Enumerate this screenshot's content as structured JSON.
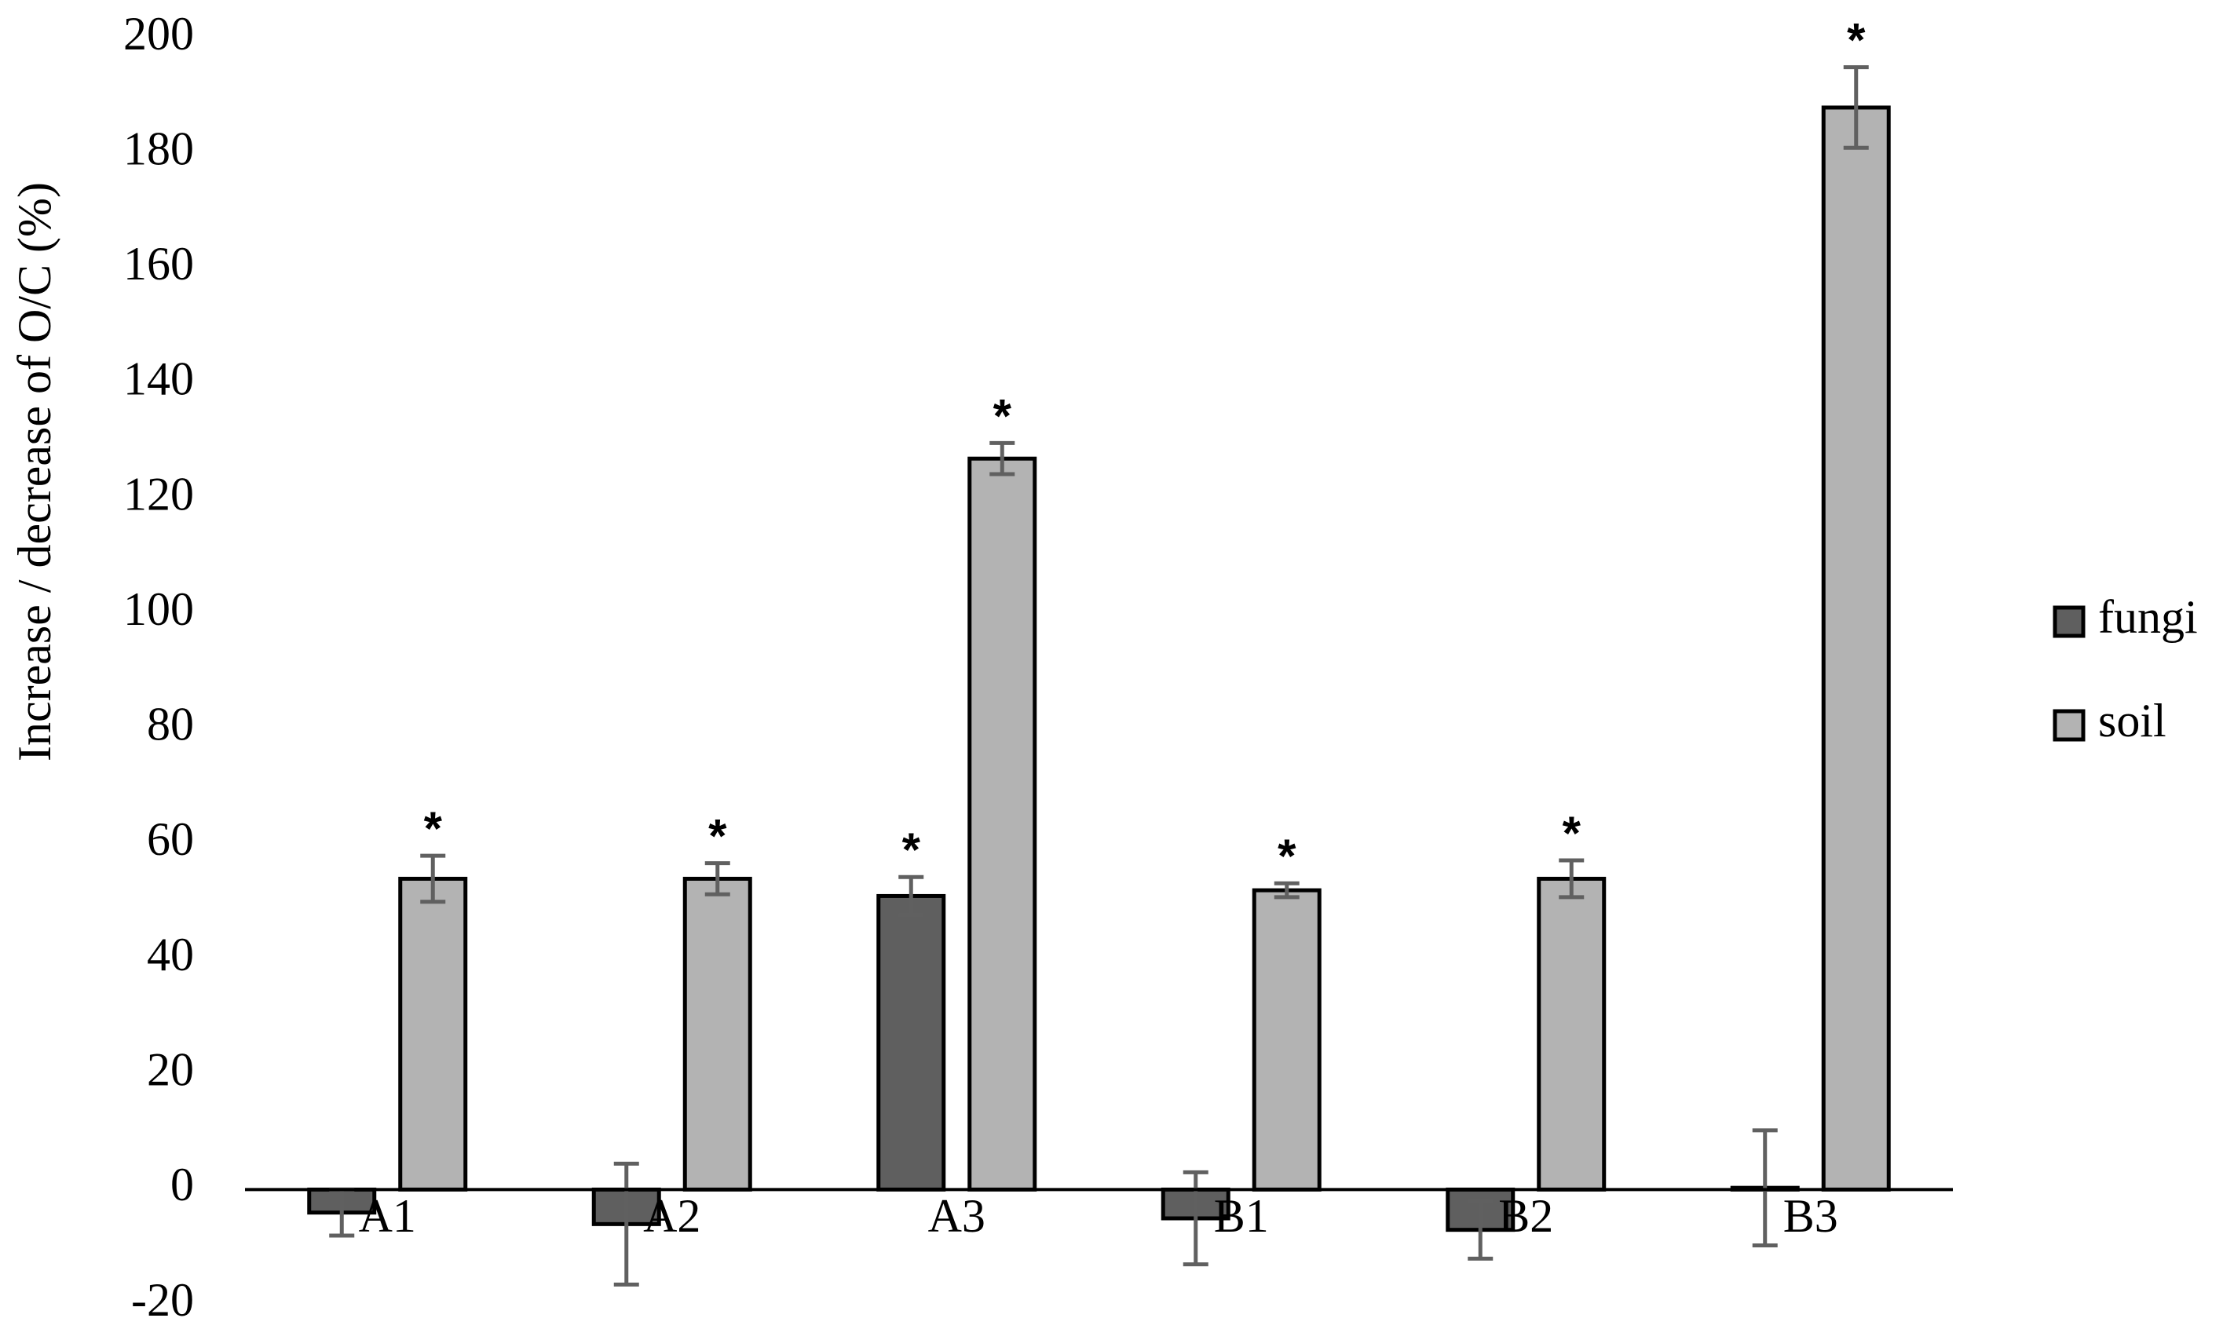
{
  "chart_data": {
    "type": "bar",
    "y_label": "Increase / decrease of O/C (%)",
    "categories": [
      "A1",
      "A2",
      "A3",
      "B1",
      "B2",
      "B3"
    ],
    "series": [
      {
        "name": "fungi",
        "color": "#5f5f5f",
        "values": [
          -4,
          -6,
          51,
          -5,
          -7,
          0.3
        ],
        "errors": [
          4,
          10.5,
          3.3,
          8,
          5,
          10
        ],
        "significance": [
          null,
          null,
          "*",
          null,
          null,
          null
        ]
      },
      {
        "name": "soil",
        "color": "#b3b3b3",
        "values": [
          54,
          54,
          127,
          52,
          54,
          188
        ],
        "errors": [
          4,
          2.7,
          2.7,
          1.2,
          3.2,
          7
        ],
        "significance": [
          "*",
          "*",
          "*",
          "*",
          "*",
          "*"
        ]
      }
    ],
    "ylim": [
      -20,
      200
    ],
    "yticks": [
      -20,
      0,
      20,
      40,
      60,
      80,
      100,
      120,
      140,
      160,
      180,
      200
    ],
    "error_color": "#606060",
    "legend": "right"
  }
}
